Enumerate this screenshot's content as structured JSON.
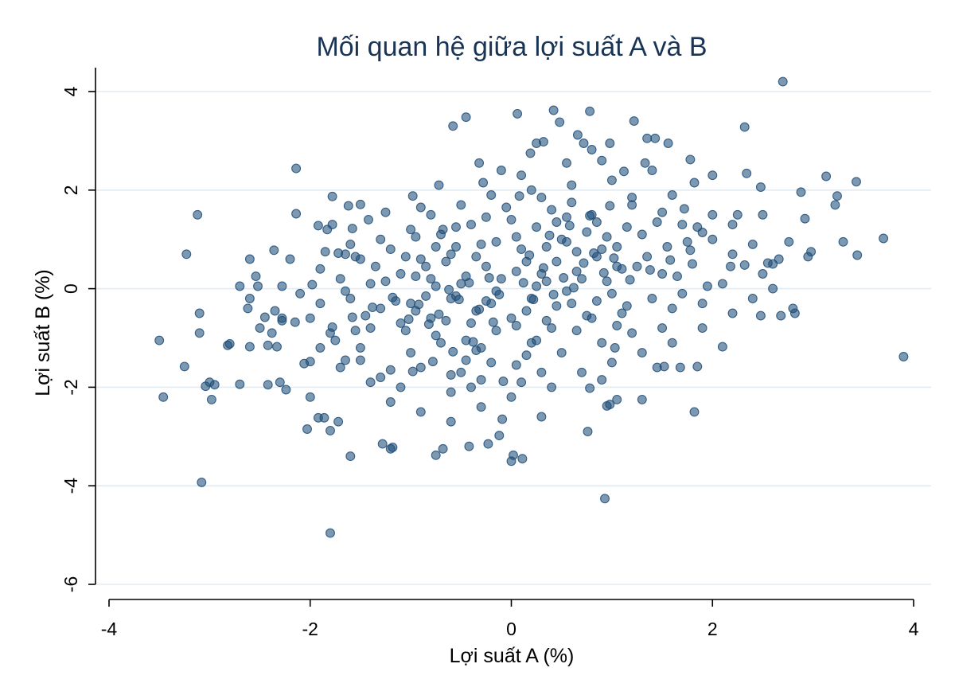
{
  "chart_data": {
    "type": "scatter",
    "title": "Mối quan hệ giữa lợi suất A và B",
    "xlabel": "Lợi suất A (%)",
    "ylabel": "Lợi suất B (%)",
    "xlim": [
      -4,
      4
    ],
    "ylim": [
      -6,
      4
    ],
    "xticks": [
      -4,
      -2,
      0,
      2,
      4
    ],
    "yticks": [
      -6,
      -4,
      -2,
      0,
      2,
      4
    ],
    "xtick_labels": [
      "-4",
      "-2",
      "0",
      "2",
      "4"
    ],
    "ytick_labels": [
      "-6",
      "-4",
      "-2",
      "0",
      "2",
      "4"
    ],
    "grid": "horizontal",
    "legend": "none",
    "marker_color": "#1f4e79",
    "points": [
      [
        2.7,
        4.2
      ],
      [
        0.42,
        3.62
      ],
      [
        0.78,
        3.6
      ],
      [
        0.06,
        3.55
      ],
      [
        -0.45,
        3.48
      ],
      [
        -0.58,
        3.3
      ],
      [
        0.48,
        3.38
      ],
      [
        1.22,
        3.4
      ],
      [
        2.32,
        3.28
      ],
      [
        0.66,
        3.12
      ],
      [
        0.25,
        2.95
      ],
      [
        0.32,
        2.98
      ],
      [
        1.35,
        3.05
      ],
      [
        1.43,
        3.05
      ],
      [
        0.72,
        2.95
      ],
      [
        0.98,
        2.95
      ],
      [
        1.56,
        2.95
      ],
      [
        0.8,
        2.82
      ],
      [
        1.78,
        2.62
      ],
      [
        0.19,
        2.75
      ],
      [
        -0.32,
        2.55
      ],
      [
        0.55,
        2.55
      ],
      [
        1.33,
        2.55
      ],
      [
        -2.14,
        2.44
      ],
      [
        2.34,
        2.34
      ],
      [
        3.13,
        2.28
      ],
      [
        3.43,
        2.17
      ],
      [
        2.48,
        2.06
      ],
      [
        -0.72,
        2.1
      ],
      [
        -0.28,
        2.15
      ],
      [
        0.1,
        2.3
      ],
      [
        1.12,
        2.38
      ],
      [
        1.82,
        2.15
      ],
      [
        2.0,
        2.3
      ],
      [
        3.24,
        1.88
      ],
      [
        2.88,
        1.96
      ],
      [
        -1.78,
        1.87
      ],
      [
        -0.98,
        1.88
      ],
      [
        -3.12,
        1.5
      ],
      [
        -2.14,
        1.52
      ],
      [
        -1.62,
        1.68
      ],
      [
        -1.5,
        1.71
      ],
      [
        -1.25,
        1.55
      ],
      [
        1.72,
        1.62
      ],
      [
        2.25,
        1.5
      ],
      [
        3.22,
        1.7
      ],
      [
        2.92,
        1.42
      ],
      [
        2.5,
        1.5
      ],
      [
        -1.92,
        1.28
      ],
      [
        -1.78,
        1.3
      ],
      [
        -1.83,
        1.2
      ],
      [
        -1.58,
        1.22
      ],
      [
        -1.42,
        1.4
      ],
      [
        -0.68,
        1.2
      ],
      [
        1.9,
        1.14
      ],
      [
        3.7,
        1.02
      ],
      [
        3.3,
        0.95
      ],
      [
        2.76,
        0.95
      ],
      [
        2.0,
        1.0
      ],
      [
        -3.23,
        0.7
      ],
      [
        -2.6,
        0.6
      ],
      [
        -2.36,
        0.78
      ],
      [
        -2.2,
        0.6
      ],
      [
        -1.65,
        0.7
      ],
      [
        -1.72,
        0.72
      ],
      [
        -1.55,
        0.65
      ],
      [
        2.98,
        0.75
      ],
      [
        3.44,
        0.68
      ],
      [
        2.95,
        0.65
      ],
      [
        2.66,
        0.6
      ],
      [
        2.6,
        0.5
      ],
      [
        2.55,
        0.52
      ],
      [
        2.32,
        0.48
      ],
      [
        2.18,
        0.45
      ],
      [
        -2.54,
        0.25
      ],
      [
        -2.7,
        0.05
      ],
      [
        -2.52,
        0.05
      ],
      [
        -2.28,
        0.05
      ],
      [
        -1.98,
        0.08
      ],
      [
        2.6,
        0.0
      ],
      [
        -2.6,
        -0.2
      ],
      [
        -2.62,
        -0.4
      ],
      [
        -2.35,
        -0.45
      ],
      [
        -3.1,
        -0.5
      ],
      [
        2.8,
        -0.4
      ],
      [
        2.82,
        -0.5
      ],
      [
        2.48,
        -0.55
      ],
      [
        2.68,
        -0.55
      ],
      [
        -2.45,
        -0.58
      ],
      [
        -2.28,
        -0.6
      ],
      [
        -2.28,
        -0.65
      ],
      [
        -2.15,
        -0.68
      ],
      [
        -2.5,
        -0.8
      ],
      [
        -3.1,
        -0.9
      ],
      [
        -2.38,
        -0.9
      ],
      [
        -3.5,
        -1.05
      ],
      [
        -2.8,
        -1.12
      ],
      [
        -2.82,
        -1.15
      ],
      [
        -2.42,
        -1.15
      ],
      [
        -2.33,
        -1.18
      ],
      [
        -2.6,
        -1.18
      ],
      [
        1.03,
        -1.2
      ],
      [
        2.1,
        -1.18
      ],
      [
        3.9,
        -1.38
      ],
      [
        -3.25,
        -1.58
      ],
      [
        -3.0,
        -1.9
      ],
      [
        -3.04,
        -1.98
      ],
      [
        -2.95,
        -1.95
      ],
      [
        -2.7,
        -1.94
      ],
      [
        -2.42,
        -1.95
      ],
      [
        -2.3,
        -1.9
      ],
      [
        -2.24,
        -2.05
      ],
      [
        -3.46,
        -2.2
      ],
      [
        -2.98,
        -2.25
      ],
      [
        -2.0,
        -2.2
      ],
      [
        -2.06,
        -1.52
      ],
      [
        -2.0,
        -1.48
      ],
      [
        -1.65,
        -1.45
      ],
      [
        1.85,
        -1.58
      ],
      [
        1.68,
        -1.6
      ],
      [
        1.45,
        -1.6
      ],
      [
        1.52,
        -1.58
      ],
      [
        1.82,
        -2.5
      ],
      [
        1.3,
        -2.25
      ],
      [
        1.05,
        -2.25
      ],
      [
        0.98,
        -2.35
      ],
      [
        0.95,
        -2.38
      ],
      [
        0.76,
        -2.9
      ],
      [
        0.78,
        -2.02
      ],
      [
        -2.03,
        -2.85
      ],
      [
        -1.92,
        -2.62
      ],
      [
        -1.86,
        -2.62
      ],
      [
        -1.8,
        -2.88
      ],
      [
        -1.6,
        -3.4
      ],
      [
        -1.72,
        -2.7
      ],
      [
        -1.28,
        -3.15
      ],
      [
        -1.18,
        -3.22
      ],
      [
        -1.2,
        -3.25
      ],
      [
        -0.75,
        -3.38
      ],
      [
        -0.68,
        -3.25
      ],
      [
        -0.42,
        -3.2
      ],
      [
        -0.23,
        -3.15
      ],
      [
        -0.12,
        -2.98
      ],
      [
        0.0,
        -3.5
      ],
      [
        0.02,
        -3.38
      ],
      [
        0.11,
        -3.45
      ],
      [
        -0.09,
        -2.65
      ],
      [
        0.3,
        -2.6
      ],
      [
        -3.08,
        -3.93
      ],
      [
        -1.8,
        -4.96
      ],
      [
        0.93,
        -4.26
      ],
      [
        -0.6,
        -2.1
      ],
      [
        -0.4,
        -2.0
      ],
      [
        -1.1,
        -2.0
      ],
      [
        -0.5,
        -1.7
      ],
      [
        -0.9,
        -1.6
      ],
      [
        -1.3,
        -1.8
      ],
      [
        0.1,
        -1.9
      ],
      [
        0.3,
        -1.7
      ],
      [
        -0.2,
        -1.5
      ],
      [
        -1.5,
        -1.2
      ],
      [
        -1.0,
        -1.3
      ],
      [
        -0.7,
        -1.1
      ],
      [
        -0.3,
        -1.2
      ],
      [
        0.2,
        -1.1
      ],
      [
        0.5,
        -1.3
      ],
      [
        0.9,
        -1.1
      ],
      [
        1.2,
        -0.9
      ],
      [
        1.5,
        -0.8
      ],
      [
        -1.8,
        -0.9
      ],
      [
        -1.4,
        -0.8
      ],
      [
        -1.1,
        -0.7
      ],
      [
        -0.8,
        -0.6
      ],
      [
        -0.4,
        -0.7
      ],
      [
        0.0,
        -0.6
      ],
      [
        0.4,
        -0.8
      ],
      [
        0.8,
        -0.6
      ],
      [
        1.1,
        -0.5
      ],
      [
        1.6,
        -0.4
      ],
      [
        1.9,
        -0.3
      ],
      [
        -1.9,
        -0.3
      ],
      [
        -1.6,
        -0.2
      ],
      [
        -1.3,
        -0.4
      ],
      [
        -1.0,
        -0.3
      ],
      [
        -0.6,
        -0.2
      ],
      [
        -0.2,
        -0.3
      ],
      [
        0.2,
        -0.2
      ],
      [
        0.6,
        -0.3
      ],
      [
        1.0,
        -0.1
      ],
      [
        1.4,
        -0.2
      ],
      [
        1.7,
        -0.1
      ],
      [
        2.1,
        0.1
      ],
      [
        -1.7,
        0.2
      ],
      [
        -1.4,
        0.1
      ],
      [
        -1.1,
        0.3
      ],
      [
        -0.8,
        0.2
      ],
      [
        -0.5,
        0.1
      ],
      [
        -0.1,
        0.2
      ],
      [
        0.3,
        0.3
      ],
      [
        0.7,
        0.2
      ],
      [
        1.1,
        0.4
      ],
      [
        1.5,
        0.3
      ],
      [
        1.8,
        0.5
      ],
      [
        2.2,
        0.7
      ],
      [
        -1.5,
        0.6
      ],
      [
        -1.2,
        0.8
      ],
      [
        -0.9,
        0.6
      ],
      [
        -0.6,
        0.7
      ],
      [
        -0.3,
        0.9
      ],
      [
        0.1,
        0.8
      ],
      [
        0.5,
        1.0
      ],
      [
        0.9,
        0.8
      ],
      [
        1.3,
        1.1
      ],
      [
        1.7,
        1.3
      ],
      [
        2.0,
        1.5
      ],
      [
        -1.0,
        1.2
      ],
      [
        -0.7,
        1.1
      ],
      [
        -0.4,
        1.3
      ],
      [
        0.0,
        1.4
      ],
      [
        0.4,
        1.6
      ],
      [
        0.8,
        1.5
      ],
      [
        1.2,
        1.7
      ],
      [
        1.6,
        1.9
      ],
      [
        -0.5,
        1.7
      ],
      [
        -0.2,
        1.9
      ],
      [
        0.2,
        2.0
      ],
      [
        0.6,
        2.1
      ],
      [
        1.0,
        2.2
      ],
      [
        1.4,
        2.4
      ],
      [
        -0.8,
        1.5
      ],
      [
        -0.1,
        2.4
      ],
      [
        0.9,
        2.6
      ],
      [
        -1.3,
        1.0
      ],
      [
        -1.6,
        0.9
      ],
      [
        -1.9,
        0.4
      ],
      [
        -2.1,
        -0.1
      ],
      [
        -2.0,
        -0.6
      ],
      [
        -1.9,
        -1.2
      ],
      [
        -1.7,
        -1.6
      ],
      [
        -1.4,
        -1.9
      ],
      [
        -1.2,
        -2.3
      ],
      [
        -0.9,
        -2.5
      ],
      [
        -0.6,
        -2.7
      ],
      [
        -0.3,
        -2.4
      ],
      [
        0.0,
        -2.2
      ],
      [
        0.4,
        -2.0
      ],
      [
        0.7,
        -1.7
      ],
      [
        1.0,
        -1.5
      ],
      [
        1.3,
        -1.3
      ],
      [
        1.6,
        -1.1
      ],
      [
        1.9,
        -0.8
      ],
      [
        2.2,
        -0.5
      ],
      [
        2.4,
        -0.2
      ],
      [
        2.5,
        0.3
      ],
      [
        2.4,
        0.9
      ],
      [
        2.2,
        1.3
      ],
      [
        -0.35,
        -0.45
      ],
      [
        -0.15,
        -0.05
      ],
      [
        0.05,
        0.35
      ],
      [
        0.25,
        0.05
      ],
      [
        0.45,
        0.55
      ],
      [
        0.65,
        0.35
      ],
      [
        -0.55,
        -0.15
      ],
      [
        -0.75,
        0.05
      ],
      [
        0.85,
        0.65
      ],
      [
        1.05,
        0.85
      ],
      [
        -0.95,
        -0.45
      ],
      [
        -1.15,
        -0.25
      ],
      [
        1.25,
        0.45
      ],
      [
        0.15,
        -0.45
      ],
      [
        -0.25,
        0.45
      ],
      [
        0.35,
        0.85
      ],
      [
        0.55,
        -0.05
      ],
      [
        -0.45,
        0.25
      ],
      [
        0.75,
        1.15
      ],
      [
        -0.65,
        -0.65
      ],
      [
        0.95,
        0.15
      ],
      [
        -0.85,
        0.45
      ],
      [
        1.15,
        1.25
      ],
      [
        -1.05,
        -0.85
      ],
      [
        0.05,
        1.05
      ],
      [
        0.45,
        -0.35
      ],
      [
        -0.15,
        -0.85
      ],
      [
        0.65,
        0.75
      ],
      [
        -0.35,
        0.65
      ],
      [
        0.25,
        1.25
      ],
      [
        -0.55,
        0.85
      ],
      [
        0.85,
        -0.25
      ],
      [
        -0.75,
        -0.95
      ],
      [
        1.05,
        0.45
      ],
      [
        -0.95,
        0.25
      ],
      [
        0.15,
        0.55
      ],
      [
        -0.25,
        -0.25
      ],
      [
        0.55,
        0.95
      ],
      [
        -0.45,
        -1.05
      ],
      [
        0.35,
        0.15
      ],
      [
        1.35,
        0.65
      ],
      [
        -1.25,
        0.15
      ],
      [
        0.75,
        -0.55
      ],
      [
        -0.65,
        0.55
      ],
      [
        0.95,
        1.05
      ],
      [
        -0.85,
        -0.15
      ],
      [
        1.15,
        -0.35
      ],
      [
        -1.05,
        0.65
      ],
      [
        0.05,
        -0.75
      ],
      [
        0.45,
        1.35
      ],
      [
        -0.15,
        0.95
      ],
      [
        0.65,
        -0.85
      ],
      [
        -0.35,
        -1.25
      ],
      [
        0.25,
        -1.05
      ],
      [
        -0.55,
        1.25
      ],
      [
        0.85,
        1.35
      ],
      [
        -0.75,
        0.85
      ],
      [
        1.05,
        -0.75
      ],
      [
        -0.95,
        1.05
      ],
      [
        0.15,
        -1.35
      ],
      [
        -0.25,
        1.45
      ],
      [
        0.55,
        1.45
      ],
      [
        -0.45,
        -1.45
      ],
      [
        0.35,
        -0.65
      ],
      [
        1.55,
        0.85
      ],
      [
        -1.45,
        -0.55
      ],
      [
        1.45,
        1.35
      ],
      [
        -1.35,
        0.45
      ],
      [
        1.65,
        0.25
      ],
      [
        -1.55,
        -0.85
      ],
      [
        1.75,
        0.95
      ],
      [
        -1.65,
        -0.05
      ],
      [
        1.85,
        1.25
      ],
      [
        -1.75,
        -1.05
      ],
      [
        1.95,
        0.05
      ],
      [
        -1.85,
        0.75
      ],
      [
        -0.05,
        1.65
      ],
      [
        0.05,
        -1.55
      ],
      [
        0.6,
        1.75
      ],
      [
        -0.6,
        -1.75
      ],
      [
        1.2,
        1.85
      ],
      [
        -1.2,
        -1.65
      ],
      [
        0.3,
        1.85
      ],
      [
        -0.3,
        -1.85
      ],
      [
        0.9,
        -1.85
      ],
      [
        -0.9,
        1.65
      ],
      [
        1.5,
        1.55
      ],
      [
        -1.5,
        -1.45
      ],
      [
        0.12,
        0.12
      ],
      [
        0.32,
        0.42
      ],
      [
        0.52,
        0.22
      ],
      [
        0.72,
        0.52
      ],
      [
        0.92,
        0.32
      ],
      [
        -0.12,
        -0.12
      ],
      [
        -0.32,
        -0.42
      ],
      [
        -0.52,
        -0.22
      ],
      [
        -0.72,
        -0.52
      ],
      [
        -0.92,
        -0.32
      ],
      [
        0.22,
        -0.22
      ],
      [
        -0.22,
        0.22
      ],
      [
        0.42,
        -0.12
      ],
      [
        -0.42,
        0.12
      ],
      [
        0.62,
        0.02
      ],
      [
        -0.62,
        -0.02
      ],
      [
        0.82,
        0.72
      ],
      [
        -0.82,
        -0.72
      ],
      [
        1.02,
        0.62
      ],
      [
        -1.02,
        -0.62
      ],
      [
        0.18,
        0.68
      ],
      [
        -0.18,
        -0.68
      ],
      [
        0.38,
        1.08
      ],
      [
        -0.38,
        -1.08
      ],
      [
        0.58,
        1.28
      ],
      [
        -0.58,
        -1.28
      ],
      [
        0.78,
        1.48
      ],
      [
        -0.78,
        -1.48
      ],
      [
        0.98,
        1.68
      ],
      [
        -0.98,
        -1.68
      ],
      [
        1.18,
        0.18
      ],
      [
        -1.18,
        -0.18
      ],
      [
        1.38,
        0.38
      ],
      [
        -1.38,
        -0.38
      ],
      [
        1.58,
        0.58
      ],
      [
        -1.58,
        -0.58
      ],
      [
        1.78,
        0.78
      ],
      [
        -1.78,
        -0.78
      ],
      [
        0.08,
        1.88
      ],
      [
        -0.08,
        -1.88
      ]
    ]
  }
}
